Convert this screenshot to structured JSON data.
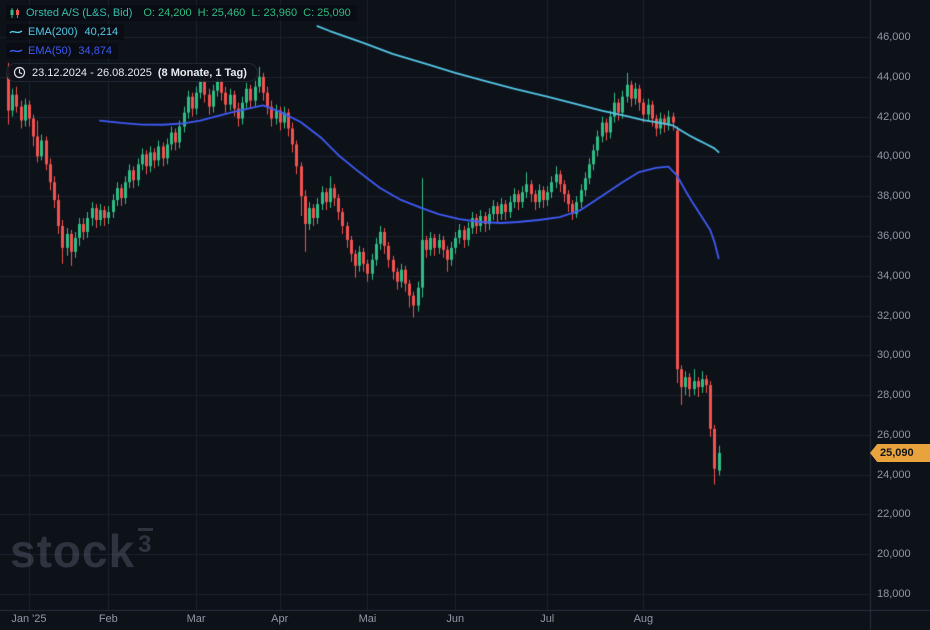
{
  "header": {
    "symbol": "Orsted A/S (L&S, Bid)",
    "ohlc": {
      "o_label": "O:",
      "o": "24,200",
      "h_label": "H:",
      "h": "25,460",
      "l_label": "L:",
      "l": "23,960",
      "c_label": "C:",
      "c": "25,090"
    }
  },
  "indicators": [
    {
      "label": "EMA(200)",
      "value": "40,214",
      "color": "#54c8e8"
    },
    {
      "label": "EMA(50)",
      "value": "34,874",
      "color": "#3f5bf6"
    }
  ],
  "range_chip": {
    "range": "23.12.2024 - 26.08.2025",
    "duration": "(8 Monate, 1 Tag)"
  },
  "price_badge": {
    "value": "25,090"
  },
  "watermark": {
    "text": "stock",
    "sup": "3"
  },
  "axes": {
    "y_labels": [
      "46,000",
      "44,000",
      "42,000",
      "40,000",
      "38,000",
      "36,000",
      "34,000",
      "32,000",
      "30,000",
      "28,000",
      "26,000",
      "24,000",
      "22,000",
      "20,000",
      "18,000"
    ],
    "x_ticks": [
      {
        "label": "Jan '25",
        "index": 5
      },
      {
        "label": "Feb",
        "index": 24
      },
      {
        "label": "Mar",
        "index": 45
      },
      {
        "label": "Apr",
        "index": 65
      },
      {
        "label": "Mai",
        "index": 86
      },
      {
        "label": "Jun",
        "index": 107
      },
      {
        "label": "Jul",
        "index": 129
      },
      {
        "label": "Aug",
        "index": 152
      }
    ]
  },
  "colors": {
    "background": "#0d1118",
    "grid": "#1c2230",
    "separator": "#2a3240",
    "up": "#2ebd85",
    "down": "#f05350",
    "ema200": "#54c8e8",
    "ema50": "#3f5bf6",
    "axis_text": "#9097a5",
    "badge_bg": "#e8a33d",
    "badge_text": "#12151c",
    "symbol_text": "#35bfae",
    "ohlc_text": "#2ebd85"
  },
  "chart_data": {
    "type": "candlestick",
    "title": "Orsted A/S (L&S, Bid)",
    "timeframe": "1 Tag",
    "date_range": "23.12.2024 - 26.08.2025",
    "ylim": [
      17850,
      47850
    ],
    "y_gridline_step": 2000,
    "last_price": 25090,
    "candles": [
      [
        44200,
        44700,
        41600,
        42300
      ],
      [
        42300,
        43400,
        42000,
        43100
      ],
      [
        43100,
        43500,
        42200,
        42500
      ],
      [
        42500,
        42800,
        41400,
        41800
      ],
      [
        41800,
        42900,
        41500,
        42600
      ],
      [
        42600,
        42800,
        41500,
        41900
      ],
      [
        41900,
        42100,
        40500,
        41000
      ],
      [
        41000,
        41800,
        39700,
        40000
      ],
      [
        40000,
        41100,
        39800,
        40800
      ],
      [
        40800,
        41000,
        39300,
        39600
      ],
      [
        39600,
        39900,
        38300,
        38700
      ],
      [
        38700,
        39000,
        37400,
        37800
      ],
      [
        37800,
        38100,
        36100,
        36500
      ],
      [
        36500,
        36800,
        34600,
        35400
      ],
      [
        35400,
        36400,
        35000,
        36100
      ],
      [
        36100,
        36300,
        34500,
        35200
      ],
      [
        35200,
        36200,
        34900,
        35900
      ],
      [
        35900,
        36900,
        35500,
        36600
      ],
      [
        36600,
        36900,
        35800,
        36200
      ],
      [
        36200,
        37200,
        35900,
        36900
      ],
      [
        36900,
        37700,
        36500,
        37400
      ],
      [
        37400,
        37600,
        36400,
        36800
      ],
      [
        36800,
        37600,
        36500,
        37300
      ],
      [
        37300,
        37500,
        36500,
        36900
      ],
      [
        36900,
        37500,
        36600,
        37200
      ],
      [
        37200,
        38100,
        36900,
        37800
      ],
      [
        37800,
        38700,
        37500,
        38400
      ],
      [
        38400,
        38600,
        37500,
        37900
      ],
      [
        37900,
        39000,
        37600,
        38700
      ],
      [
        38700,
        39600,
        38400,
        39300
      ],
      [
        39300,
        39500,
        38400,
        38800
      ],
      [
        38800,
        39900,
        38500,
        39600
      ],
      [
        39600,
        40400,
        39300,
        40100
      ],
      [
        40100,
        40300,
        39100,
        39500
      ],
      [
        39500,
        40500,
        39200,
        40200
      ],
      [
        40200,
        40400,
        39400,
        39800
      ],
      [
        39800,
        40800,
        39500,
        40500
      ],
      [
        40500,
        40700,
        39500,
        39900
      ],
      [
        39900,
        40900,
        39600,
        40600
      ],
      [
        40600,
        41500,
        40300,
        41200
      ],
      [
        41200,
        41400,
        40300,
        40700
      ],
      [
        40700,
        41800,
        40400,
        41500
      ],
      [
        41500,
        42500,
        41200,
        42200
      ],
      [
        42200,
        43300,
        41900,
        43000
      ],
      [
        43000,
        43200,
        42000,
        42400
      ],
      [
        42400,
        43500,
        42100,
        43200
      ],
      [
        43200,
        44300,
        42900,
        43800
      ],
      [
        43800,
        44000,
        42700,
        43100
      ],
      [
        43100,
        43400,
        42100,
        42500
      ],
      [
        42500,
        43600,
        42200,
        43300
      ],
      [
        43300,
        44400,
        43000,
        43900
      ],
      [
        43900,
        44100,
        42800,
        43200
      ],
      [
        43200,
        43500,
        42200,
        42600
      ],
      [
        42600,
        43400,
        42300,
        43100
      ],
      [
        43100,
        43300,
        42000,
        42400
      ],
      [
        42400,
        42700,
        41500,
        41900
      ],
      [
        41900,
        43000,
        41600,
        42700
      ],
      [
        42700,
        43700,
        42400,
        43400
      ],
      [
        43400,
        43600,
        42400,
        42800
      ],
      [
        42800,
        43800,
        42500,
        43500
      ],
      [
        43500,
        44500,
        43200,
        44000
      ],
      [
        44000,
        44200,
        42800,
        43200
      ],
      [
        43200,
        43500,
        42100,
        42500
      ],
      [
        42500,
        42800,
        41500,
        41900
      ],
      [
        41900,
        42600,
        41600,
        42300
      ],
      [
        42300,
        42500,
        41300,
        41700
      ],
      [
        41700,
        42500,
        41400,
        42200
      ],
      [
        42200,
        42400,
        41000,
        41400
      ],
      [
        41400,
        41700,
        40200,
        40600
      ],
      [
        40600,
        40800,
        39100,
        39500
      ],
      [
        39500,
        39700,
        37000,
        38000
      ],
      [
        38000,
        38300,
        35200,
        36600
      ],
      [
        36600,
        37700,
        36300,
        37400
      ],
      [
        37400,
        37600,
        36500,
        36900
      ],
      [
        36900,
        37900,
        36600,
        37600
      ],
      [
        37600,
        38500,
        37300,
        38200
      ],
      [
        38200,
        38400,
        37300,
        37700
      ],
      [
        37700,
        39000,
        37400,
        38400
      ],
      [
        38400,
        38600,
        37500,
        37900
      ],
      [
        37900,
        38100,
        36800,
        37200
      ],
      [
        37200,
        37400,
        36100,
        36500
      ],
      [
        36500,
        36700,
        35400,
        35800
      ],
      [
        35800,
        36000,
        34700,
        35100
      ],
      [
        35100,
        35300,
        33900,
        34500
      ],
      [
        34500,
        35500,
        34200,
        35200
      ],
      [
        35200,
        35400,
        34200,
        34600
      ],
      [
        34600,
        34800,
        33700,
        34100
      ],
      [
        34100,
        35100,
        33800,
        34800
      ],
      [
        34800,
        35900,
        34500,
        35600
      ],
      [
        35600,
        36500,
        35300,
        36200
      ],
      [
        36200,
        36400,
        35100,
        35500
      ],
      [
        35500,
        35700,
        34400,
        34800
      ],
      [
        34800,
        35000,
        33800,
        34200
      ],
      [
        34200,
        34400,
        33300,
        33700
      ],
      [
        33700,
        34600,
        33400,
        34300
      ],
      [
        34300,
        34500,
        33200,
        33600
      ],
      [
        33600,
        33800,
        32400,
        33000
      ],
      [
        33000,
        33200,
        31900,
        32500
      ],
      [
        32500,
        33700,
        32200,
        33400
      ],
      [
        33400,
        38900,
        32900,
        35800
      ],
      [
        35800,
        36000,
        34900,
        35300
      ],
      [
        35300,
        36200,
        35000,
        35900
      ],
      [
        35900,
        36100,
        35000,
        35400
      ],
      [
        35400,
        36100,
        35100,
        35800
      ],
      [
        35800,
        36000,
        34900,
        35300
      ],
      [
        35300,
        35500,
        34200,
        34800
      ],
      [
        34800,
        35700,
        34500,
        35400
      ],
      [
        35400,
        36200,
        35100,
        35900
      ],
      [
        35900,
        36600,
        35600,
        36300
      ],
      [
        36300,
        36500,
        35400,
        35800
      ],
      [
        35800,
        36700,
        35500,
        36400
      ],
      [
        36400,
        37200,
        36100,
        36900
      ],
      [
        36900,
        37100,
        36100,
        36500
      ],
      [
        36500,
        37300,
        36200,
        37000
      ],
      [
        37000,
        37200,
        36200,
        36600
      ],
      [
        36600,
        37400,
        36300,
        37100
      ],
      [
        37100,
        37800,
        36800,
        37500
      ],
      [
        37500,
        37700,
        36700,
        37100
      ],
      [
        37100,
        37900,
        36800,
        37600
      ],
      [
        37600,
        37800,
        36800,
        37200
      ],
      [
        37200,
        38000,
        36900,
        37700
      ],
      [
        37700,
        38400,
        37400,
        38100
      ],
      [
        38100,
        38300,
        37300,
        37700
      ],
      [
        37700,
        38500,
        37400,
        38200
      ],
      [
        38200,
        39200,
        37900,
        38600
      ],
      [
        38600,
        38800,
        37700,
        38100
      ],
      [
        38100,
        38300,
        37300,
        37700
      ],
      [
        37700,
        38600,
        37400,
        38300
      ],
      [
        38300,
        38500,
        37400,
        37800
      ],
      [
        37800,
        38500,
        37500,
        38200
      ],
      [
        38200,
        39000,
        37900,
        38700
      ],
      [
        38700,
        39500,
        38400,
        39100
      ],
      [
        39100,
        39300,
        38200,
        38600
      ],
      [
        38600,
        38800,
        37700,
        38100
      ],
      [
        38100,
        38300,
        37200,
        37600
      ],
      [
        37600,
        37800,
        36800,
        37100
      ],
      [
        37100,
        38000,
        36900,
        37700
      ],
      [
        37700,
        38600,
        37400,
        38300
      ],
      [
        38300,
        39200,
        38000,
        38900
      ],
      [
        38900,
        39900,
        38600,
        39600
      ],
      [
        39600,
        40600,
        39300,
        40300
      ],
      [
        40300,
        41300,
        40000,
        41000
      ],
      [
        41000,
        42000,
        40700,
        41700
      ],
      [
        41700,
        41900,
        40800,
        41200
      ],
      [
        41200,
        42300,
        40900,
        42000
      ],
      [
        42000,
        43200,
        41700,
        42700
      ],
      [
        42700,
        42900,
        41800,
        42200
      ],
      [
        42200,
        43300,
        41900,
        43000
      ],
      [
        43000,
        44200,
        42700,
        43600
      ],
      [
        43600,
        43800,
        42500,
        42900
      ],
      [
        42900,
        43700,
        42600,
        43400
      ],
      [
        43400,
        43600,
        42300,
        42700
      ],
      [
        42700,
        42900,
        41700,
        42100
      ],
      [
        42100,
        42900,
        41800,
        42600
      ],
      [
        42600,
        42800,
        41500,
        41900
      ],
      [
        41900,
        42100,
        41000,
        41400
      ],
      [
        41400,
        42200,
        41100,
        41900
      ],
      [
        41900,
        42100,
        41200,
        41600
      ],
      [
        41600,
        42300,
        41300,
        42000
      ],
      [
        42000,
        42200,
        41300,
        41700
      ],
      [
        41300,
        41500,
        28600,
        29300
      ],
      [
        29300,
        29500,
        27500,
        28400
      ],
      [
        28400,
        29200,
        28000,
        28900
      ],
      [
        28900,
        29100,
        27900,
        28300
      ],
      [
        28300,
        29300,
        28000,
        28700
      ],
      [
        28700,
        28900,
        27900,
        28400
      ],
      [
        28400,
        29200,
        28100,
        28800
      ],
      [
        28800,
        29000,
        28100,
        28500
      ],
      [
        28500,
        28700,
        25900,
        26300
      ],
      [
        26300,
        26500,
        23500,
        24300
      ],
      [
        24200,
        25460,
        23960,
        25090
      ]
    ],
    "overlays": [
      {
        "name": "EMA(200)",
        "value": 40214,
        "color": "#54c8e8",
        "points": [
          [
            74,
            46550
          ],
          [
            77,
            46300
          ],
          [
            85,
            45700
          ],
          [
            92,
            45150
          ],
          [
            100,
            44650
          ],
          [
            107,
            44200
          ],
          [
            114,
            43800
          ],
          [
            121,
            43400
          ],
          [
            129,
            43000
          ],
          [
            136,
            42620
          ],
          [
            142,
            42300
          ],
          [
            148,
            42020
          ],
          [
            152,
            41820
          ],
          [
            156,
            41680
          ],
          [
            159,
            41560
          ],
          [
            161,
            41300
          ],
          [
            163,
            41050
          ],
          [
            165,
            40830
          ],
          [
            167,
            40620
          ],
          [
            169,
            40400
          ],
          [
            170,
            40214
          ]
        ]
      },
      {
        "name": "EMA(50)",
        "value": 34874,
        "color": "#3f5bf6",
        "points": [
          [
            22,
            41800
          ],
          [
            27,
            41680
          ],
          [
            32,
            41600
          ],
          [
            37,
            41590
          ],
          [
            42,
            41660
          ],
          [
            46,
            41800
          ],
          [
            50,
            42020
          ],
          [
            54,
            42230
          ],
          [
            58,
            42420
          ],
          [
            61,
            42560
          ],
          [
            65,
            42250
          ],
          [
            70,
            41730
          ],
          [
            75,
            40920
          ],
          [
            79,
            40070
          ],
          [
            84,
            39210
          ],
          [
            89,
            38410
          ],
          [
            94,
            37810
          ],
          [
            99,
            37400
          ],
          [
            103,
            37100
          ],
          [
            108,
            36850
          ],
          [
            113,
            36700
          ],
          [
            118,
            36650
          ],
          [
            122,
            36700
          ],
          [
            127,
            36800
          ],
          [
            132,
            36950
          ],
          [
            137,
            37300
          ],
          [
            142,
            38000
          ],
          [
            147,
            38700
          ],
          [
            151,
            39210
          ],
          [
            155,
            39420
          ],
          [
            158,
            39480
          ],
          [
            160,
            39050
          ],
          [
            162,
            38300
          ],
          [
            164,
            37600
          ],
          [
            166,
            36950
          ],
          [
            168,
            36300
          ],
          [
            169,
            35700
          ],
          [
            170,
            34874
          ]
        ]
      }
    ]
  }
}
